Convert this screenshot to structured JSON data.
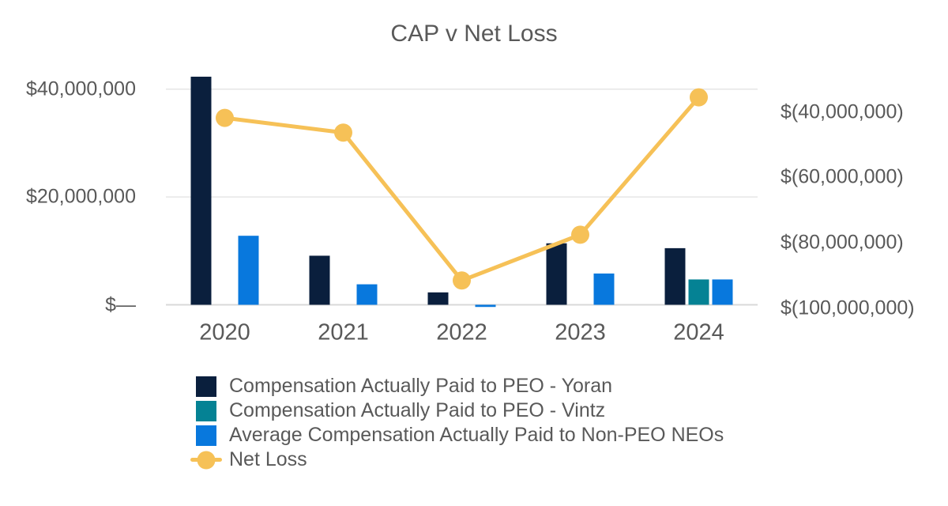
{
  "chart_data": {
    "type": "combo-bar-line",
    "title": "CAP v Net Loss",
    "categories": [
      "2020",
      "2021",
      "2022",
      "2023",
      "2024"
    ],
    "bar_series": [
      {
        "name": "Compensation Actually Paid to PEO - Yoran",
        "color": "#0a1f3d",
        "values": [
          42300000,
          9100000,
          2300000,
          11400000,
          10500000
        ]
      },
      {
        "name": "Compensation Actually Paid to PEO - Vintz",
        "color": "#058294",
        "values": [
          0,
          0,
          0,
          0,
          4700000
        ]
      },
      {
        "name": "Average Compensation Actually Paid to Non-PEO NEOs",
        "color": "#0878dd",
        "values": [
          12800000,
          3800000,
          -400000,
          5800000,
          4700000
        ]
      }
    ],
    "line_series": {
      "name": "Net Loss",
      "color": "#f6c157",
      "axis": "right",
      "values": [
        -41800000,
        -46300000,
        -91500000,
        -77500000,
        -35500000
      ]
    },
    "left_axis": {
      "ticks": [
        {
          "label": "$—",
          "value": 0
        },
        {
          "label": "$20,000,000",
          "value": 20000000
        },
        {
          "label": "$40,000,000",
          "value": 40000000
        }
      ]
    },
    "right_axis": {
      "ticks": [
        {
          "label": "$(40,000,000)",
          "value": -40000000
        },
        {
          "label": "$(60,000,000)",
          "value": -60000000
        },
        {
          "label": "$(80,000,000)",
          "value": -80000000
        },
        {
          "label": "$(100,000,000)",
          "value": -100000000
        }
      ]
    },
    "grid": "horizontal",
    "legend_position": "bottom-left",
    "text_color": "#595959",
    "gridline_color": "#e6e6e6",
    "axis_line_color": "#d9d9d9"
  }
}
